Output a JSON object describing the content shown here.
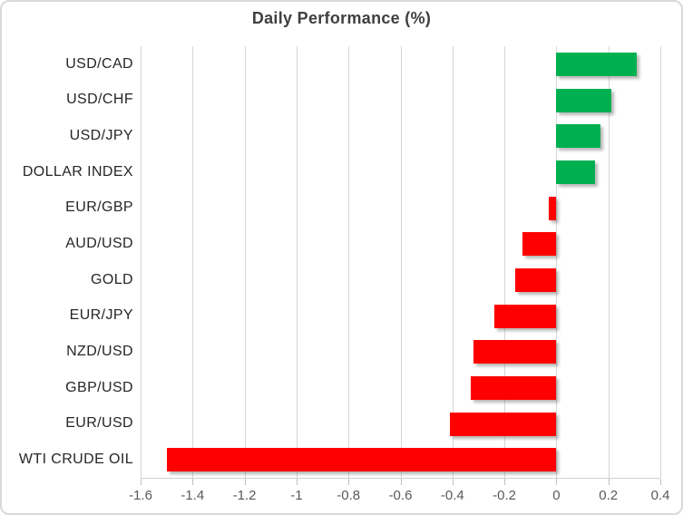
{
  "chart_data": {
    "type": "bar",
    "orientation": "horizontal",
    "title": "Daily Performance (%)",
    "categories": [
      "USD/CAD",
      "USD/CHF",
      "USD/JPY",
      "DOLLAR INDEX",
      "EUR/GBP",
      "AUD/USD",
      "GOLD",
      "EUR/JPY",
      "NZD/USD",
      "GBP/USD",
      "EUR/USD",
      "WTI CRUDE OIL"
    ],
    "values": [
      0.31,
      0.21,
      0.17,
      0.15,
      -0.03,
      -0.13,
      -0.16,
      -0.24,
      -0.32,
      -0.33,
      -0.41,
      -1.5
    ],
    "xlim": [
      -1.6,
      0.4
    ],
    "x_tick_values": [
      -1.6,
      -1.4,
      -1.2,
      -1.0,
      -0.8,
      -0.6,
      -0.4,
      -0.2,
      0,
      0.2,
      0.4
    ],
    "x_tick_labels": [
      "-1.6",
      "-1.4",
      "-1.2",
      "-1",
      "-0.8",
      "-0.6",
      "-0.4",
      "-0.2",
      "0",
      "0.2",
      "0.4"
    ],
    "grid": true,
    "legend": "none",
    "colors": {
      "positive": "#00B050",
      "negative": "#FF0000",
      "gridline": "#D6D6D6",
      "title_text": "#3F3F3F",
      "category_text": "#262626",
      "tick_text": "#595959",
      "chart_border": "#D9D9D9"
    }
  }
}
